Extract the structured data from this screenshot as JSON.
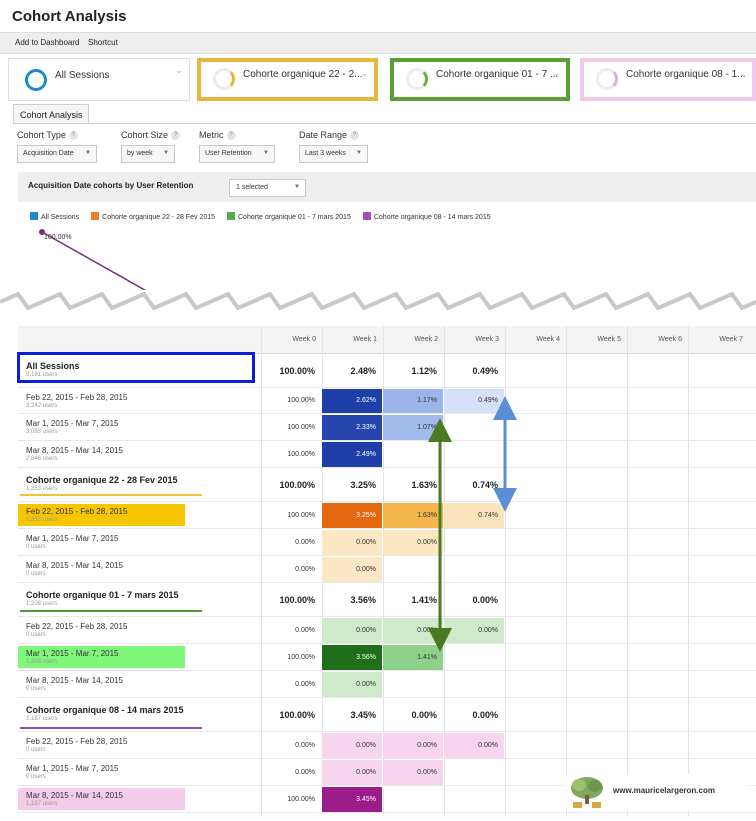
{
  "title": "Cohort Analysis",
  "toolbar": {
    "add_to_dashboard": "Add to Dashboard",
    "shortcut": "Shortcut"
  },
  "segments": [
    {
      "label": "All Sessions",
      "color": "#1a8cc6",
      "outline": "#dddddd"
    },
    {
      "label": "Cohorte organique 22 - 2...",
      "color": "#f0b429",
      "outline": "#e8b53e"
    },
    {
      "label": "Cohorte organique 01 - 7 ...",
      "color": "#5fb741",
      "outline": "#5aa132"
    },
    {
      "label": "Cohorte organique 08 - 1...",
      "color": "#e7a9da",
      "outline": "#f1c9ec"
    }
  ],
  "tab": {
    "label": "Cohort Analysis"
  },
  "controls": {
    "cohort_type": {
      "label": "Cohort Type",
      "value": "Acquisition Date"
    },
    "cohort_size": {
      "label": "Cohort Size",
      "value": "by week"
    },
    "metric": {
      "label": "Metric",
      "value": "User Retention"
    },
    "date_range": {
      "label": "Date Range",
      "value": "Last 3 weeks"
    },
    "help_glyph": "?"
  },
  "chart_header": {
    "title": "Acquisition Date cohorts by User Retention",
    "selector": "1 selected"
  },
  "chart_data": {
    "type": "line",
    "series": [
      {
        "name": "All Sessions",
        "color": "#1a8cc6"
      },
      {
        "name": "Cohorte organique 22 - 28 Fev 2015",
        "color": "#ed7d31"
      },
      {
        "name": "Cohorte organique 01 - 7 mars 2015",
        "color": "#4cae4c"
      },
      {
        "name": "Cohorte organique 08 - 14 mars 2015",
        "color": "#a84cb8"
      }
    ],
    "point_label": "100.00%",
    "line_color": "#7b2c7b"
  },
  "table": {
    "columns": [
      "Week 0",
      "Week 1",
      "Week 2",
      "Week 3",
      "Week 4",
      "Week 5",
      "Week 6",
      "Week 7"
    ],
    "rows": [
      {
        "type": "total",
        "label": "All Sessions",
        "sub": "9,181 users",
        "values": [
          "100.00%",
          "2.48%",
          "1.12%",
          "0.49%"
        ]
      },
      {
        "type": "sub",
        "label": "Feb 22, 2015 - Feb 28, 2015",
        "sub": "3,242 users",
        "values": [
          "100.00%",
          "2.62%",
          "1.17%",
          "0.49%"
        ],
        "colors": [
          null,
          "#1f3fa8",
          "#9bb4ea",
          "#d6e0f7"
        ],
        "text_colors": [
          null,
          "#ffffff",
          "#333333",
          "#333333"
        ]
      },
      {
        "type": "sub",
        "label": "Mar 1, 2015 - Mar 7, 2015",
        "sub": "3,093 users",
        "values": [
          "100.00%",
          "2.33%",
          "1.07%"
        ],
        "colors": [
          null,
          "#2544ac",
          "#a2baec"
        ],
        "text_colors": [
          null,
          "#ffffff",
          "#333333"
        ]
      },
      {
        "type": "sub",
        "label": "Mar 8, 2015 - Mar 14, 2015",
        "sub": "2,846 users",
        "values": [
          "100.00%",
          "2.49%"
        ],
        "colors": [
          null,
          "#1f3fa8"
        ],
        "text_colors": [
          null,
          "#ffffff"
        ]
      },
      {
        "type": "total",
        "label": "Cohorte organique 22 - 28 Fev 2015",
        "sub": "1,353 users",
        "values": [
          "100.00%",
          "3.25%",
          "1.63%",
          "0.74%"
        ]
      },
      {
        "type": "sub",
        "label": "Feb 22, 2015 - Feb 28, 2015",
        "sub": "1,353 users",
        "values": [
          "100.00%",
          "3.25%",
          "1.63%",
          "0.74%"
        ],
        "colors": [
          null,
          "#e4680f",
          "#f3b54c",
          "#fbe3bb"
        ],
        "text_colors": [
          null,
          "#ffffff",
          "#333333",
          "#333333"
        ],
        "highlight": "#f7c600"
      },
      {
        "type": "sub",
        "label": "Mar 1, 2015 - Mar 7, 2015",
        "sub": "0 users",
        "values": [
          "0.00%",
          "0.00%",
          "0.00%"
        ],
        "colors": [
          null,
          "#fbe7c4",
          "#fbe7c4"
        ],
        "text_colors": [
          null,
          "#333333",
          "#333333"
        ]
      },
      {
        "type": "sub",
        "label": "Mar 8, 2015 - Mar 14, 2015",
        "sub": "0 users",
        "values": [
          "0.00%",
          "0.00%"
        ],
        "colors": [
          null,
          "#fbe7c4"
        ],
        "text_colors": [
          null,
          "#333333"
        ]
      },
      {
        "type": "total",
        "label": "Cohorte organique 01 - 7 mars 2015",
        "sub": "1,208 users",
        "values": [
          "100.00%",
          "3.56%",
          "1.41%",
          "0.00%"
        ]
      },
      {
        "type": "sub",
        "label": "Feb 22, 2015 - Feb 28, 2015",
        "sub": "0 users",
        "values": [
          "0.00%",
          "0.00%",
          "0.00%",
          "0.00%"
        ],
        "colors": [
          null,
          "#cfe9cb",
          "#cfe9cb",
          "#cfe9cb"
        ],
        "text_colors": [
          null,
          "#333333",
          "#333333",
          "#333333"
        ]
      },
      {
        "type": "sub",
        "label": "Mar 1, 2015 - Mar 7, 2015",
        "sub": "1,208 users",
        "values": [
          "100.00%",
          "3.56%",
          "1.41%"
        ],
        "colors": [
          null,
          "#1e6e1a",
          "#8fd08a"
        ],
        "text_colors": [
          null,
          "#ffffff",
          "#333333"
        ],
        "highlight": "#7ef77b"
      },
      {
        "type": "sub",
        "label": "Mar 8, 2015 - Mar 14, 2015",
        "sub": "0 users",
        "values": [
          "0.00%",
          "0.00%"
        ],
        "colors": [
          null,
          "#cfe9cb"
        ],
        "text_colors": [
          null,
          "#333333"
        ]
      },
      {
        "type": "total",
        "label": "Cohorte organique 08 - 14 mars 2015",
        "sub": "1,187 users",
        "values": [
          "100.00%",
          "3.45%",
          "0.00%",
          "0.00%"
        ]
      },
      {
        "type": "sub",
        "label": "Feb 22, 2015 - Feb 28, 2015",
        "sub": "0 users",
        "values": [
          "0.00%",
          "0.00%",
          "0.00%",
          "0.00%"
        ],
        "colors": [
          null,
          "#f7d5ee",
          "#f7d5ee",
          "#f7d5ee"
        ],
        "text_colors": [
          null,
          "#333333",
          "#333333",
          "#333333"
        ]
      },
      {
        "type": "sub",
        "label": "Mar 1, 2015 - Mar 7, 2015",
        "sub": "0 users",
        "values": [
          "0.00%",
          "0.00%",
          "0.00%"
        ],
        "colors": [
          null,
          "#f7d5ee",
          "#f7d5ee"
        ],
        "text_colors": [
          null,
          "#333333",
          "#333333"
        ]
      },
      {
        "type": "sub",
        "label": "Mar 8, 2015 - Mar 14, 2015",
        "sub": "1,187 users",
        "values": [
          "100.00%",
          "3.45%"
        ],
        "colors": [
          null,
          "#9c1c8a"
        ],
        "text_colors": [
          null,
          "#ffffff"
        ],
        "highlight": "#f4cbe9"
      }
    ]
  },
  "annotations": {
    "all_sessions_box_color": "#0a1fd6",
    "underline_colors": [
      "#f2c230",
      "#4d9a2e",
      "#8a4fbf"
    ],
    "arrow_colors": {
      "blue": "#5a8fd8",
      "green": "#4a7a22"
    }
  },
  "watermark": {
    "site": "www.mauricelargeron.com"
  }
}
